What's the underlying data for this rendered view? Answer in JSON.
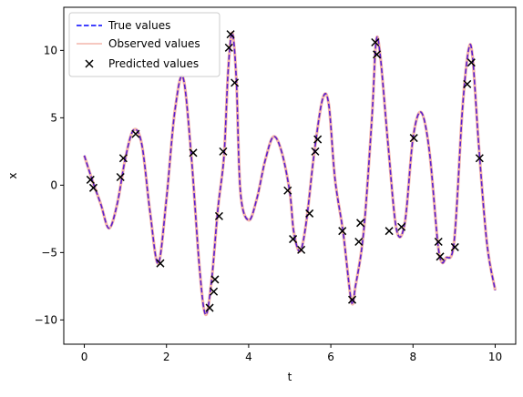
{
  "chart_data": {
    "type": "line",
    "title": "",
    "xlabel": "t",
    "ylabel": "x",
    "xlim": [
      -0.5,
      10.5
    ],
    "ylim": [
      -11.8,
      13.2
    ],
    "xticks": [
      0,
      2,
      4,
      6,
      8,
      10
    ],
    "yticks": [
      -10,
      -5,
      0,
      5,
      10
    ],
    "xtick_labels": [
      "0",
      "2",
      "4",
      "6",
      "8",
      "10"
    ],
    "ytick_labels": [
      "−10",
      "−5",
      "0",
      "5",
      "10"
    ],
    "grid": false,
    "legend_position": "top-left",
    "colors": {
      "true_values": "#0000ff",
      "observed_values": "#f4b6ab",
      "predicted_values": "#000000",
      "overlap": "#5a1fd0"
    },
    "series": [
      {
        "name": "True values",
        "style": "dashed-line",
        "x": [
          0,
          0.2,
          0.4,
          0.6,
          0.8,
          1.0,
          1.2,
          1.4,
          1.6,
          1.8,
          2.0,
          2.2,
          2.4,
          2.6,
          2.8,
          2.95,
          3.1,
          3.25,
          3.4,
          3.5,
          3.6,
          3.7,
          3.8,
          4.0,
          4.2,
          4.4,
          4.6,
          4.8,
          5.0,
          5.1,
          5.25,
          5.4,
          5.6,
          5.8,
          5.95,
          6.1,
          6.3,
          6.5,
          6.6,
          6.8,
          7.0,
          7.1,
          7.2,
          7.4,
          7.6,
          7.8,
          8.0,
          8.2,
          8.4,
          8.6,
          8.7,
          8.8,
          9.0,
          9.2,
          9.35,
          9.45,
          9.6,
          9.8,
          10.0
        ],
        "values": [
          2.2,
          0.3,
          -1.4,
          -3.2,
          -1.4,
          2.0,
          4.1,
          3.0,
          -2.0,
          -5.8,
          -1.0,
          5.4,
          8.0,
          2.3,
          -6.0,
          -9.6,
          -7.0,
          -1.8,
          2.2,
          8.5,
          11.3,
          7.8,
          -0.5,
          -2.6,
          -1.0,
          1.8,
          3.6,
          2.5,
          -0.5,
          -3.5,
          -4.9,
          -2.8,
          2.5,
          6.4,
          6.0,
          0.5,
          -3.5,
          -8.6,
          -7.5,
          -3.4,
          5.0,
          10.6,
          9.7,
          2.8,
          -3.3,
          -2.8,
          3.5,
          5.4,
          2.5,
          -4.2,
          -5.7,
          -5.4,
          -4.2,
          5.5,
          10.0,
          9.5,
          3.0,
          -4.3,
          -7.8
        ]
      },
      {
        "name": "Observed values",
        "style": "solid-line"
      },
      {
        "name": "Predicted values",
        "style": "x-marker",
        "x": [
          0.15,
          0.22,
          0.88,
          0.95,
          1.25,
          1.85,
          2.65,
          3.05,
          3.15,
          3.18,
          3.28,
          3.38,
          3.52,
          3.56,
          3.66,
          4.95,
          5.08,
          5.28,
          5.48,
          5.62,
          5.68,
          6.28,
          6.52,
          6.68,
          6.72,
          7.08,
          7.12,
          7.42,
          7.72,
          8.02,
          8.62,
          8.66,
          9.02,
          9.32,
          9.42,
          9.62
        ],
        "values": [
          0.4,
          -0.2,
          0.6,
          2.0,
          3.8,
          -5.8,
          2.4,
          -9.1,
          -7.9,
          -7.0,
          -2.3,
          2.5,
          10.2,
          11.2,
          7.6,
          -0.4,
          -4.0,
          -4.8,
          -2.1,
          2.5,
          3.4,
          -3.4,
          -8.5,
          -4.2,
          -2.8,
          10.6,
          9.7,
          -3.4,
          -3.1,
          3.5,
          -4.2,
          -5.3,
          -4.6,
          7.5,
          9.1,
          2.0
        ]
      }
    ]
  }
}
